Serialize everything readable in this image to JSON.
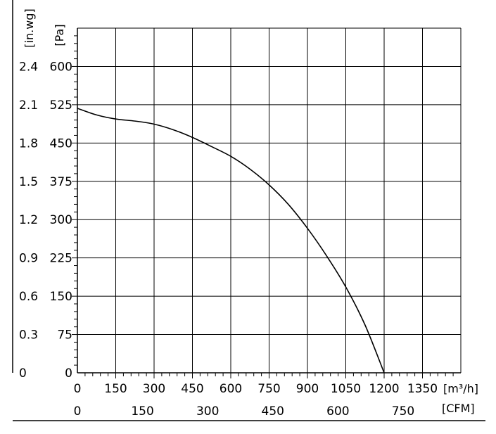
{
  "chart_data": {
    "type": "line",
    "title": "",
    "x_primary": {
      "unit": "[m³/h]",
      "ticks": [
        0,
        150,
        300,
        450,
        600,
        750,
        900,
        1050,
        1200,
        1350
      ],
      "range": [
        0,
        1500
      ]
    },
    "x_secondary": {
      "unit": "[CFM]",
      "ticks": [
        0,
        150,
        300,
        450,
        600,
        750
      ]
    },
    "y_primary": {
      "unit": "[Pa]",
      "ticks": [
        0,
        75,
        150,
        225,
        300,
        375,
        450,
        525,
        600
      ],
      "range": [
        0,
        675
      ]
    },
    "y_secondary": {
      "unit": "[in.wg]",
      "ticks": [
        "0",
        "0.3",
        "0.6",
        "0.9",
        "1.2",
        "1.5",
        "1.8",
        "2.1",
        "2.4"
      ]
    },
    "grid": true,
    "series": [
      {
        "x": [
          0,
          75,
          150,
          225,
          300,
          375,
          450,
          525,
          600,
          675,
          750,
          825,
          900,
          975,
          1050,
          1125,
          1200
        ],
        "y": [
          518,
          505,
          497,
          493,
          487,
          476,
          461,
          443,
          424,
          399,
          368,
          330,
          283,
          229,
          168,
          94,
          0
        ]
      }
    ]
  }
}
